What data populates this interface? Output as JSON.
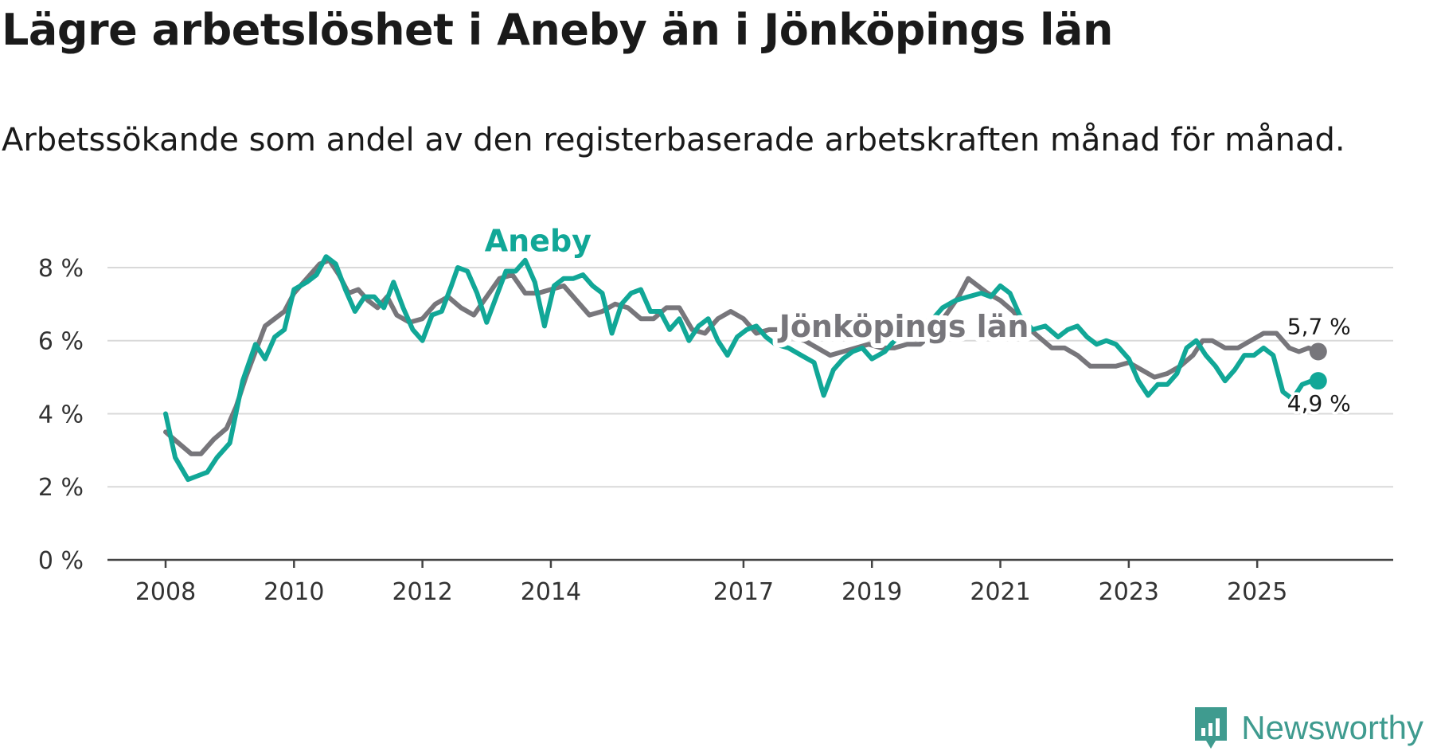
{
  "title": "Lägre arbetslöshet i Aneby än i Jönköpings län",
  "subtitle": "Arbetssökande som andel av den registerbaserade arbetskraften månad för månad.",
  "brand": {
    "name": "Newsworthy",
    "icon": "newsworthy-logo-icon"
  },
  "colors": {
    "aneby": "#11a797",
    "lan": "#77767b",
    "grid": "#d9d9d9",
    "axis": "#444444"
  },
  "chart_data": {
    "type": "line",
    "title": "Lägre arbetslöshet i Aneby än i Jönköpings län",
    "xlabel": "",
    "ylabel": "",
    "xlim": [
      2008.0,
      2026.25
    ],
    "ylim": [
      0,
      8.5
    ],
    "yticks": [
      0,
      2,
      4,
      6,
      8
    ],
    "ytick_labels": [
      "0 %",
      "2 %",
      "4 %",
      "6 %",
      "8 %"
    ],
    "xticks": [
      2008,
      2010,
      2012,
      2014,
      2017,
      2019,
      2021,
      2023,
      2025
    ],
    "xtick_labels": [
      "2008",
      "2010",
      "2012",
      "2014",
      "2017",
      "2019",
      "2021",
      "2023",
      "2025"
    ],
    "grid": true,
    "legend": "inline labels",
    "series": [
      {
        "name": "Jönköpings län",
        "end_label": "5,7 %",
        "points": [
          [
            2008.0,
            3.5
          ],
          [
            2008.2,
            3.2
          ],
          [
            2008.4,
            2.9
          ],
          [
            2008.55,
            2.9
          ],
          [
            2008.75,
            3.3
          ],
          [
            2008.95,
            3.6
          ],
          [
            2009.1,
            4.2
          ],
          [
            2009.25,
            5.0
          ],
          [
            2009.4,
            5.7
          ],
          [
            2009.55,
            6.4
          ],
          [
            2009.7,
            6.6
          ],
          [
            2009.85,
            6.8
          ],
          [
            2010.0,
            7.3
          ],
          [
            2010.2,
            7.7
          ],
          [
            2010.4,
            8.1
          ],
          [
            2010.55,
            8.2
          ],
          [
            2010.7,
            7.8
          ],
          [
            2010.85,
            7.3
          ],
          [
            2011.0,
            7.4
          ],
          [
            2011.15,
            7.1
          ],
          [
            2011.3,
            6.9
          ],
          [
            2011.45,
            7.2
          ],
          [
            2011.6,
            6.7
          ],
          [
            2011.8,
            6.5
          ],
          [
            2012.0,
            6.6
          ],
          [
            2012.2,
            7.0
          ],
          [
            2012.4,
            7.2
          ],
          [
            2012.6,
            6.9
          ],
          [
            2012.8,
            6.7
          ],
          [
            2013.0,
            7.2
          ],
          [
            2013.2,
            7.7
          ],
          [
            2013.4,
            7.8
          ],
          [
            2013.6,
            7.3
          ],
          [
            2013.8,
            7.3
          ],
          [
            2014.0,
            7.4
          ],
          [
            2014.2,
            7.5
          ],
          [
            2014.4,
            7.1
          ],
          [
            2014.6,
            6.7
          ],
          [
            2014.8,
            6.8
          ],
          [
            2015.0,
            7.0
          ],
          [
            2015.2,
            6.9
          ],
          [
            2015.4,
            6.6
          ],
          [
            2015.6,
            6.6
          ],
          [
            2015.8,
            6.9
          ],
          [
            2016.0,
            6.9
          ],
          [
            2016.2,
            6.3
          ],
          [
            2016.4,
            6.2
          ],
          [
            2016.6,
            6.6
          ],
          [
            2016.8,
            6.8
          ],
          [
            2017.0,
            6.6
          ],
          [
            2017.2,
            6.2
          ],
          [
            2017.4,
            6.3
          ],
          [
            2017.55,
            6.3
          ],
          [
            2017.75,
            6.1
          ],
          [
            2017.95,
            6.0
          ],
          [
            2018.15,
            5.8
          ],
          [
            2018.35,
            5.6
          ],
          [
            2018.55,
            5.7
          ],
          [
            2018.75,
            5.8
          ],
          [
            2018.95,
            5.9
          ],
          [
            2019.15,
            5.8
          ],
          [
            2019.35,
            5.8
          ],
          [
            2019.55,
            5.9
          ],
          [
            2019.75,
            5.9
          ],
          [
            2019.95,
            6.2
          ],
          [
            2020.15,
            6.7
          ],
          [
            2020.35,
            7.2
          ],
          [
            2020.5,
            7.7
          ],
          [
            2020.65,
            7.5
          ],
          [
            2020.8,
            7.3
          ],
          [
            2021.0,
            7.1
          ],
          [
            2021.2,
            6.8
          ],
          [
            2021.4,
            6.4
          ],
          [
            2021.6,
            6.1
          ],
          [
            2021.8,
            5.8
          ],
          [
            2022.0,
            5.8
          ],
          [
            2022.2,
            5.6
          ],
          [
            2022.4,
            5.3
          ],
          [
            2022.6,
            5.3
          ],
          [
            2022.8,
            5.3
          ],
          [
            2023.0,
            5.4
          ],
          [
            2023.2,
            5.2
          ],
          [
            2023.4,
            5.0
          ],
          [
            2023.6,
            5.1
          ],
          [
            2023.8,
            5.3
          ],
          [
            2024.0,
            5.6
          ],
          [
            2024.15,
            6.0
          ],
          [
            2024.3,
            6.0
          ],
          [
            2024.5,
            5.8
          ],
          [
            2024.7,
            5.8
          ],
          [
            2024.9,
            6.0
          ],
          [
            2025.1,
            6.2
          ],
          [
            2025.3,
            6.2
          ],
          [
            2025.5,
            5.8
          ],
          [
            2025.65,
            5.7
          ],
          [
            2025.8,
            5.8
          ],
          [
            2025.95,
            5.7
          ]
        ]
      },
      {
        "name": "Aneby",
        "end_label": "4,9 %",
        "points": [
          [
            2008.0,
            4.0
          ],
          [
            2008.15,
            2.8
          ],
          [
            2008.35,
            2.2
          ],
          [
            2008.5,
            2.3
          ],
          [
            2008.65,
            2.4
          ],
          [
            2008.8,
            2.8
          ],
          [
            2009.0,
            3.2
          ],
          [
            2009.2,
            4.9
          ],
          [
            2009.4,
            5.9
          ],
          [
            2009.55,
            5.5
          ],
          [
            2009.7,
            6.1
          ],
          [
            2009.85,
            6.3
          ],
          [
            2010.0,
            7.4
          ],
          [
            2010.2,
            7.6
          ],
          [
            2010.35,
            7.8
          ],
          [
            2010.5,
            8.3
          ],
          [
            2010.65,
            8.1
          ],
          [
            2010.8,
            7.4
          ],
          [
            2010.95,
            6.8
          ],
          [
            2011.1,
            7.2
          ],
          [
            2011.25,
            7.2
          ],
          [
            2011.4,
            6.9
          ],
          [
            2011.55,
            7.6
          ],
          [
            2011.7,
            6.9
          ],
          [
            2011.85,
            6.3
          ],
          [
            2012.0,
            6.0
          ],
          [
            2012.15,
            6.7
          ],
          [
            2012.3,
            6.8
          ],
          [
            2012.45,
            7.5
          ],
          [
            2012.55,
            8.0
          ],
          [
            2012.7,
            7.9
          ],
          [
            2012.85,
            7.3
          ],
          [
            2013.0,
            6.5
          ],
          [
            2013.15,
            7.2
          ],
          [
            2013.3,
            7.9
          ],
          [
            2013.45,
            7.9
          ],
          [
            2013.6,
            8.2
          ],
          [
            2013.75,
            7.6
          ],
          [
            2013.9,
            6.4
          ],
          [
            2014.05,
            7.5
          ],
          [
            2014.2,
            7.7
          ],
          [
            2014.35,
            7.7
          ],
          [
            2014.5,
            7.8
          ],
          [
            2014.65,
            7.5
          ],
          [
            2014.8,
            7.3
          ],
          [
            2014.95,
            6.2
          ],
          [
            2015.1,
            7.0
          ],
          [
            2015.25,
            7.3
          ],
          [
            2015.4,
            7.4
          ],
          [
            2015.55,
            6.8
          ],
          [
            2015.7,
            6.8
          ],
          [
            2015.85,
            6.3
          ],
          [
            2016.0,
            6.6
          ],
          [
            2016.15,
            6.0
          ],
          [
            2016.3,
            6.4
          ],
          [
            2016.45,
            6.6
          ],
          [
            2016.6,
            6.0
          ],
          [
            2016.75,
            5.6
          ],
          [
            2016.9,
            6.1
          ],
          [
            2017.05,
            6.3
          ],
          [
            2017.2,
            6.4
          ],
          [
            2017.35,
            6.1
          ],
          [
            2017.5,
            5.9
          ],
          [
            2017.7,
            5.8
          ],
          [
            2017.9,
            5.6
          ],
          [
            2018.1,
            5.4
          ],
          [
            2018.25,
            4.5
          ],
          [
            2018.4,
            5.2
          ],
          [
            2018.55,
            5.5
          ],
          [
            2018.7,
            5.7
          ],
          [
            2018.85,
            5.8
          ],
          [
            2019.0,
            5.5
          ],
          [
            2019.2,
            5.7
          ],
          [
            2019.4,
            6.1
          ],
          [
            2019.6,
            6.1
          ],
          [
            2019.8,
            6.5
          ],
          [
            2019.95,
            6.6
          ],
          [
            2020.1,
            6.9
          ],
          [
            2020.3,
            7.1
          ],
          [
            2020.5,
            7.2
          ],
          [
            2020.7,
            7.3
          ],
          [
            2020.85,
            7.2
          ],
          [
            2021.0,
            7.5
          ],
          [
            2021.15,
            7.3
          ],
          [
            2021.3,
            6.7
          ],
          [
            2021.5,
            6.3
          ],
          [
            2021.7,
            6.4
          ],
          [
            2021.9,
            6.1
          ],
          [
            2022.05,
            6.3
          ],
          [
            2022.2,
            6.4
          ],
          [
            2022.35,
            6.1
          ],
          [
            2022.5,
            5.9
          ],
          [
            2022.65,
            6.0
          ],
          [
            2022.8,
            5.9
          ],
          [
            2023.0,
            5.5
          ],
          [
            2023.15,
            4.9
          ],
          [
            2023.3,
            4.5
          ],
          [
            2023.45,
            4.8
          ],
          [
            2023.6,
            4.8
          ],
          [
            2023.75,
            5.1
          ],
          [
            2023.9,
            5.8
          ],
          [
            2024.05,
            6.0
          ],
          [
            2024.2,
            5.6
          ],
          [
            2024.35,
            5.3
          ],
          [
            2024.5,
            4.9
          ],
          [
            2024.65,
            5.2
          ],
          [
            2024.8,
            5.6
          ],
          [
            2024.95,
            5.6
          ],
          [
            2025.1,
            5.8
          ],
          [
            2025.25,
            5.6
          ],
          [
            2025.4,
            4.6
          ],
          [
            2025.55,
            4.4
          ],
          [
            2025.7,
            4.8
          ],
          [
            2025.85,
            4.9
          ],
          [
            2025.95,
            4.9
          ]
        ]
      }
    ],
    "annotations": [
      {
        "text": "Aneby",
        "series": "Aneby"
      },
      {
        "text": "Jönköpings län",
        "series": "Jönköpings län"
      }
    ]
  }
}
